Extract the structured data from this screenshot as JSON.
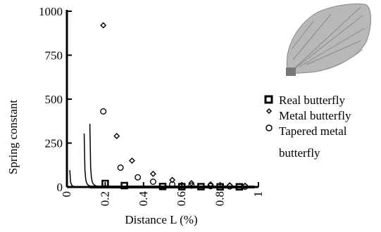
{
  "chart_data": {
    "type": "line",
    "xlabel": "Distance L (%)",
    "ylabel": "Spring constant",
    "xlim": [
      0,
      1
    ],
    "ylim": [
      0,
      1000
    ],
    "x_ticks": [
      "0",
      "0.2",
      "0.4",
      "0.6",
      "0.8",
      "1"
    ],
    "y_ticks": [
      "0",
      "250",
      "500",
      "750",
      "1000"
    ],
    "grid": false,
    "legend_position": "right",
    "series": [
      {
        "name": "Real butterfly",
        "marker": "square",
        "points": [
          [
            0.2,
            20
          ],
          [
            0.3,
            8
          ],
          [
            0.5,
            3
          ],
          [
            0.6,
            2
          ],
          [
            0.7,
            2
          ],
          [
            0.8,
            1
          ],
          [
            0.9,
            1
          ]
        ]
      },
      {
        "name": "Metal butterfly",
        "marker": "diamond",
        "points": [
          [
            0.19,
            920
          ],
          [
            0.26,
            290
          ],
          [
            0.34,
            150
          ],
          [
            0.45,
            75
          ],
          [
            0.55,
            40
          ],
          [
            0.65,
            22
          ],
          [
            0.75,
            15
          ],
          [
            0.85,
            10
          ],
          [
            0.93,
            7
          ]
        ]
      },
      {
        "name": "Tapered metal butterfly",
        "marker": "circle",
        "points": [
          [
            0.19,
            430
          ],
          [
            0.28,
            110
          ],
          [
            0.37,
            55
          ],
          [
            0.45,
            30
          ],
          [
            0.55,
            15
          ],
          [
            0.65,
            8
          ],
          [
            0.75,
            5
          ],
          [
            0.85,
            3
          ],
          [
            0.93,
            2
          ]
        ]
      }
    ],
    "legend_labels": [
      "Real butterfly",
      "Metal butterfly",
      "Tapered metal",
      "butterfly"
    ]
  },
  "wing_image": "butterfly-wing"
}
